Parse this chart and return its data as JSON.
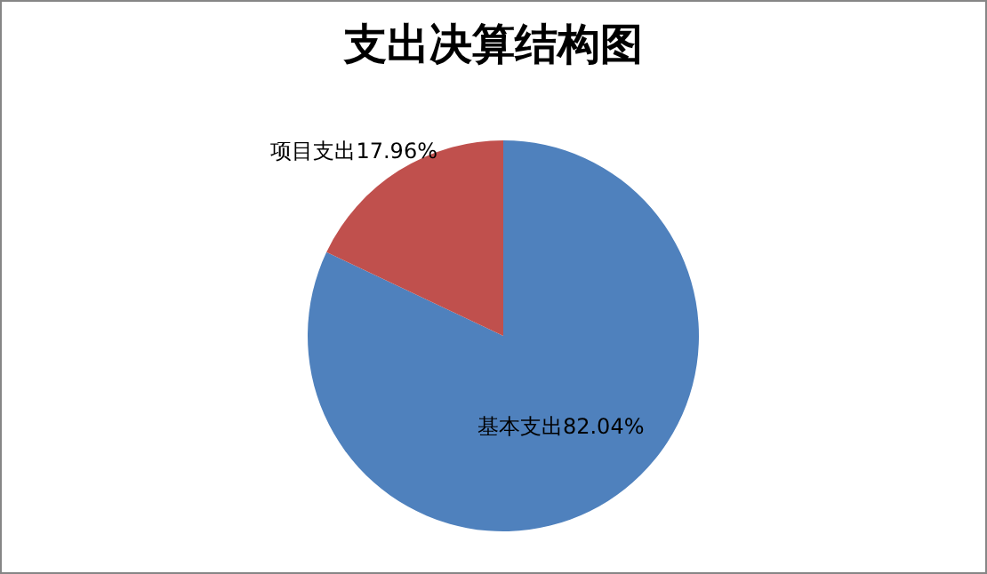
{
  "chart_data": {
    "type": "pie",
    "title": "支出决算结构图",
    "categories": [
      "基本支出",
      "项目支出"
    ],
    "values": [
      82.04,
      17.96
    ],
    "colors": [
      "#4f81bd",
      "#c0504d"
    ],
    "value_labels": [
      "82.04%",
      "17.96%"
    ],
    "legend": false
  }
}
